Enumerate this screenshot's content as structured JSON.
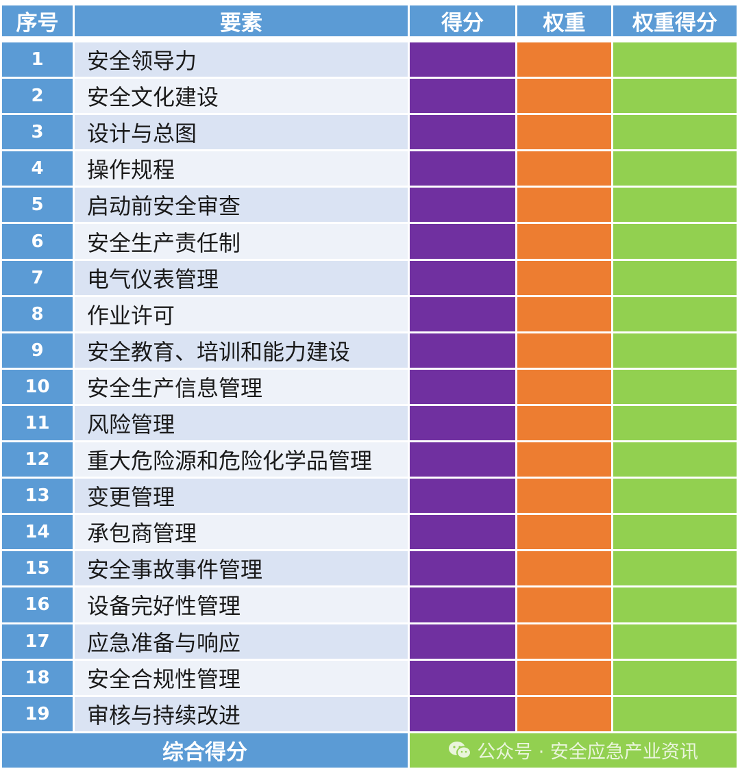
{
  "header": {
    "index": "序号",
    "element": "要素",
    "score": "得分",
    "weight": "权重",
    "weighted_score": "权重得分"
  },
  "rows": [
    {
      "index": "1",
      "element": "安全领导力"
    },
    {
      "index": "2",
      "element": "安全文化建设"
    },
    {
      "index": "3",
      "element": "设计与总图"
    },
    {
      "index": "4",
      "element": "操作规程"
    },
    {
      "index": "5",
      "element": "启动前安全审查"
    },
    {
      "index": "6",
      "element": "安全生产责任制"
    },
    {
      "index": "7",
      "element": "电气仪表管理"
    },
    {
      "index": "8",
      "element": "作业许可"
    },
    {
      "index": "9",
      "element": "安全教育、培训和能力建设"
    },
    {
      "index": "10",
      "element": "安全生产信息管理"
    },
    {
      "index": "11",
      "element": "风险管理"
    },
    {
      "index": "12",
      "element": "重大危险源和危险化学品管理"
    },
    {
      "index": "13",
      "element": "变更管理"
    },
    {
      "index": "14",
      "element": "承包商管理"
    },
    {
      "index": "15",
      "element": "安全事故事件管理"
    },
    {
      "index": "16",
      "element": "设备完好性管理"
    },
    {
      "index": "17",
      "element": "应急准备与响应"
    },
    {
      "index": "18",
      "element": "安全合规性管理"
    },
    {
      "index": "19",
      "element": "审核与持续改进"
    }
  ],
  "footer": {
    "total_label": "综合得分",
    "watermark": "公众号 · 安全应急产业资讯",
    "watermark_icon": "wechat-icon"
  },
  "colors": {
    "header_blue": "#5b9bd5",
    "score_purple": "#7030a0",
    "weight_orange": "#ed7d31",
    "weighted_green": "#92d050",
    "row_shade_a": "#dae3f3",
    "row_shade_b": "#eef2f9"
  }
}
